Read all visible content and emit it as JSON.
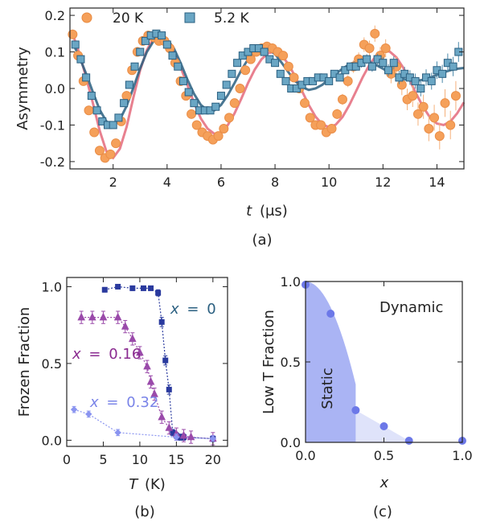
{
  "panel_labels": [
    "(a)",
    "(b)",
    "(c)"
  ],
  "chart_data": [
    {
      "id": "a",
      "type": "scatter",
      "xlabel_var": "t",
      "xlabel_unit": "(μs)",
      "ylabel": "Asymmetry",
      "xlim": [
        0.4,
        15
      ],
      "ylim": [
        -0.22,
        0.22
      ],
      "xticks": [
        2,
        4,
        6,
        8,
        10,
        12,
        14
      ],
      "yticks": [
        -0.2,
        -0.1,
        0.0,
        0.1,
        0.2
      ],
      "ytick_labels": [
        "-0.2",
        "-0.1",
        "0.0",
        "0.1",
        "0.2"
      ],
      "legend_placement": "top",
      "series": [
        {
          "name": "20 K",
          "marker": "circle",
          "color": "#f5a05a",
          "fit_color": "#e0556a",
          "points_x": [
            0.5,
            0.7,
            0.9,
            1.1,
            1.3,
            1.5,
            1.7,
            1.9,
            2.1,
            2.3,
            2.5,
            2.7,
            2.9,
            3.1,
            3.3,
            3.5,
            3.7,
            3.9,
            4.1,
            4.3,
            4.5,
            4.7,
            4.9,
            5.1,
            5.3,
            5.5,
            5.7,
            5.9,
            6.1,
            6.3,
            6.5,
            6.7,
            6.9,
            7.1,
            7.3,
            7.5,
            7.7,
            7.9,
            8.1,
            8.3,
            8.5,
            8.7,
            8.9,
            9.1,
            9.3,
            9.5,
            9.7,
            9.9,
            10.1,
            10.3,
            10.5,
            10.7,
            10.9,
            11.1,
            11.3,
            11.5,
            11.7,
            11.9,
            12.1,
            12.3,
            12.5,
            12.7,
            12.9,
            13.1,
            13.3,
            13.5,
            13.7,
            13.9,
            14.1,
            14.3,
            14.5,
            14.7
          ],
          "points_y": [
            0.148,
            0.09,
            0.02,
            -0.06,
            -0.12,
            -0.17,
            -0.19,
            -0.18,
            -0.15,
            -0.09,
            -0.02,
            0.05,
            0.1,
            0.13,
            0.145,
            0.14,
            0.13,
            0.13,
            0.11,
            0.07,
            0.02,
            -0.02,
            -0.07,
            -0.1,
            -0.12,
            -0.13,
            -0.14,
            -0.13,
            -0.11,
            -0.08,
            -0.04,
            0.0,
            0.05,
            0.08,
            0.1,
            0.11,
            0.115,
            0.11,
            0.1,
            0.09,
            0.06,
            0.03,
            0.0,
            -0.04,
            -0.08,
            -0.1,
            -0.1,
            -0.12,
            -0.11,
            -0.07,
            -0.03,
            0.02,
            0.06,
            0.08,
            0.12,
            0.11,
            0.15,
            0.09,
            0.11,
            0.04,
            0.06,
            0.01,
            -0.03,
            -0.02,
            -0.07,
            -0.05,
            -0.11,
            -0.08,
            -0.13,
            -0.04,
            -0.1,
            -0.02
          ],
          "fit_x": [
            0.5,
            0.75,
            1.0,
            1.25,
            1.5,
            1.75,
            2.0,
            2.25,
            2.5,
            2.75,
            3.0,
            3.25,
            3.5,
            3.75,
            4.0,
            4.25,
            4.5,
            4.75,
            5.0,
            5.25,
            5.5,
            5.75,
            6.0,
            6.25,
            6.5,
            6.75,
            7.0,
            7.25,
            7.5,
            7.75,
            8.0,
            8.25,
            8.5,
            8.75,
            9.0,
            9.25,
            9.5,
            9.75,
            10.0,
            10.25,
            10.5,
            10.75,
            11.0,
            11.25,
            11.5,
            11.75,
            12.0,
            12.25,
            12.5,
            12.75,
            13.0,
            13.25,
            13.5,
            13.75,
            14.0,
            14.25,
            14.5,
            14.75,
            15.0
          ],
          "fit_y": [
            0.149,
            0.096,
            0.03,
            -0.04,
            -0.115,
            -0.172,
            -0.19,
            -0.165,
            -0.105,
            -0.025,
            0.05,
            0.105,
            0.138,
            0.144,
            0.13,
            0.1,
            0.058,
            0.01,
            -0.04,
            -0.082,
            -0.11,
            -0.124,
            -0.12,
            -0.1,
            -0.068,
            -0.028,
            0.015,
            0.052,
            0.08,
            0.097,
            0.1,
            0.09,
            0.066,
            0.032,
            -0.007,
            -0.045,
            -0.077,
            -0.098,
            -0.106,
            -0.099,
            -0.078,
            -0.046,
            -0.008,
            0.031,
            0.065,
            0.09,
            0.103,
            0.101,
            0.085,
            0.057,
            0.021,
            -0.017,
            -0.052,
            -0.08,
            -0.096,
            -0.1,
            -0.09,
            -0.068,
            -0.038
          ]
        },
        {
          "name": "5.2 K",
          "marker": "square",
          "color": "#3a7a9e",
          "fit_color": "#2a5f80",
          "points_x": [
            0.6,
            0.8,
            1.0,
            1.2,
            1.4,
            1.6,
            1.8,
            2.0,
            2.2,
            2.4,
            2.6,
            2.8,
            3.0,
            3.2,
            3.4,
            3.6,
            3.8,
            4.0,
            4.2,
            4.4,
            4.6,
            4.8,
            5.0,
            5.2,
            5.4,
            5.6,
            5.8,
            6.0,
            6.2,
            6.4,
            6.6,
            6.8,
            7.0,
            7.2,
            7.4,
            7.6,
            7.8,
            8.0,
            8.2,
            8.4,
            8.6,
            8.8,
            9.0,
            9.2,
            9.4,
            9.6,
            9.8,
            10.0,
            10.2,
            10.4,
            10.6,
            10.8,
            11.0,
            11.2,
            11.4,
            11.6,
            11.8,
            12.0,
            12.2,
            12.4,
            12.6,
            12.8,
            13.0,
            13.2,
            13.4,
            13.6,
            13.8,
            14.0,
            14.2,
            14.4,
            14.6,
            14.8
          ],
          "points_y": [
            0.12,
            0.08,
            0.03,
            -0.02,
            -0.06,
            -0.09,
            -0.1,
            -0.1,
            -0.08,
            -0.04,
            0.01,
            0.06,
            0.1,
            0.13,
            0.145,
            0.15,
            0.145,
            0.12,
            0.09,
            0.06,
            0.02,
            -0.01,
            -0.04,
            -0.06,
            -0.06,
            -0.06,
            -0.05,
            -0.02,
            0.01,
            0.04,
            0.07,
            0.09,
            0.1,
            0.11,
            0.11,
            0.1,
            0.08,
            0.07,
            0.04,
            0.02,
            0.0,
            0.0,
            0.01,
            0.02,
            0.02,
            0.03,
            0.03,
            0.02,
            0.04,
            0.03,
            0.05,
            0.06,
            0.06,
            0.07,
            0.08,
            0.06,
            0.08,
            0.07,
            0.05,
            0.07,
            0.03,
            0.04,
            0.03,
            0.02,
            0.0,
            0.03,
            0.02,
            0.05,
            0.04,
            0.07,
            0.06,
            0.1
          ],
          "fit_x": [
            0.5,
            0.75,
            1.0,
            1.25,
            1.5,
            1.75,
            2.0,
            2.25,
            2.5,
            2.75,
            3.0,
            3.25,
            3.5,
            3.75,
            4.0,
            4.25,
            4.5,
            4.75,
            5.0,
            5.25,
            5.5,
            5.75,
            6.0,
            6.25,
            6.5,
            6.75,
            7.0,
            7.25,
            7.5,
            7.75,
            8.0,
            8.25,
            8.5,
            8.75,
            9.0,
            9.25,
            9.5,
            9.75,
            10.0,
            10.25,
            10.5,
            10.75,
            11.0,
            11.25,
            11.5,
            11.75,
            12.0,
            12.25,
            12.5,
            12.75,
            13.0,
            13.25,
            13.5,
            13.75,
            14.0,
            14.25,
            14.5,
            14.75,
            15.0
          ],
          "fit_y": [
            0.125,
            0.086,
            0.04,
            -0.01,
            -0.058,
            -0.09,
            -0.1,
            -0.085,
            -0.048,
            0.002,
            0.055,
            0.1,
            0.13,
            0.142,
            0.135,
            0.11,
            0.07,
            0.025,
            -0.015,
            -0.045,
            -0.06,
            -0.06,
            -0.045,
            -0.018,
            0.015,
            0.05,
            0.08,
            0.1,
            0.11,
            0.108,
            0.094,
            0.07,
            0.044,
            0.02,
            0.004,
            -0.004,
            0.0,
            0.01,
            0.025,
            0.04,
            0.054,
            0.066,
            0.073,
            0.075,
            0.072,
            0.064,
            0.054,
            0.043,
            0.033,
            0.026,
            0.022,
            0.021,
            0.024,
            0.03,
            0.037,
            0.044,
            0.05,
            0.054,
            0.056
          ]
        }
      ]
    },
    {
      "id": "b",
      "type": "scatter",
      "xlabel_var": "T",
      "xlabel_unit": "(K)",
      "ylabel": "Frozen Fraction",
      "xlim": [
        0,
        22
      ],
      "ylim": [
        -0.04,
        1.06
      ],
      "xticks": [
        0,
        5,
        10,
        15,
        20
      ],
      "yticks": [
        0.0,
        0.5,
        1.0
      ],
      "ytick_labels": [
        "0.0",
        "0.5",
        "1.0"
      ],
      "series": [
        {
          "name": "x = 0",
          "label_var": "x",
          "label_value": "0",
          "marker": "square",
          "color": "#2a3a9e",
          "label_color": "#2a5f80",
          "x": [
            5.2,
            7.0,
            9.0,
            10.5,
            11.5,
            12.5,
            13.0,
            13.5,
            14.0,
            14.5,
            15.0,
            15.5,
            16.0,
            20.0
          ],
          "y": [
            0.98,
            1.0,
            0.99,
            0.99,
            0.99,
            0.96,
            0.77,
            0.52,
            0.33,
            0.05,
            0.03,
            0.02,
            0.02,
            0.01
          ],
          "err": [
            0.015,
            0.015,
            0.015,
            0.015,
            0.015,
            0.02,
            0.03,
            0.03,
            0.03,
            0.02,
            0.02,
            0.02,
            0.02,
            0.02
          ]
        },
        {
          "name": "x = 0.16",
          "label_var": "x",
          "label_value": "0.16",
          "marker": "triangle",
          "color": "#9a4aaa",
          "label_color": "#8a2a90",
          "x": [
            2.0,
            3.5,
            5.0,
            7.0,
            8.0,
            9.0,
            10.0,
            11.0,
            11.5,
            12.0,
            13.0,
            14.0,
            15.0,
            16.0,
            17.0,
            20.0
          ],
          "y": [
            0.8,
            0.8,
            0.8,
            0.8,
            0.74,
            0.66,
            0.57,
            0.48,
            0.38,
            0.3,
            0.15,
            0.08,
            0.04,
            0.03,
            0.02,
            0.01
          ],
          "err": [
            0.04,
            0.04,
            0.04,
            0.04,
            0.04,
            0.04,
            0.04,
            0.04,
            0.04,
            0.04,
            0.04,
            0.04,
            0.04,
            0.04,
            0.04,
            0.04
          ]
        },
        {
          "name": "x = 0.32",
          "label_var": "x",
          "label_value": "0.32",
          "marker": "diamond",
          "color": "#8a94f0",
          "label_color": "#7a84e8",
          "x": [
            1.0,
            3.0,
            7.0,
            15.0,
            20.0
          ],
          "y": [
            0.2,
            0.17,
            0.05,
            0.02,
            0.01
          ],
          "err": [
            0.02,
            0.02,
            0.02,
            0.02,
            0.02
          ]
        }
      ]
    },
    {
      "id": "c",
      "type": "scatter",
      "xlabel_var": "x",
      "ylabel": "Low T Fraction",
      "xlim": [
        0,
        1.0
      ],
      "ylim": [
        0,
        1.0
      ],
      "xticks": [
        0.0,
        0.5,
        1.0
      ],
      "xtick_labels": [
        "0.0",
        "0.5",
        "1.0"
      ],
      "yticks": [
        0.0,
        0.5,
        1.0
      ],
      "ytick_labels": [
        "0.0",
        "0.5",
        "1.0"
      ],
      "region_labels": {
        "dynamic": "Dynamic",
        "static": "Static"
      },
      "colors": {
        "points": "#6c78e8",
        "static_region": "#aab4f4",
        "dynamic_light": "#dfe3fa"
      },
      "points": {
        "x": [
          0.0,
          0.16,
          0.32,
          0.5,
          0.66,
          1.0
        ],
        "y": [
          0.98,
          0.8,
          0.2,
          0.1,
          0.01,
          0.01
        ]
      }
    }
  ]
}
